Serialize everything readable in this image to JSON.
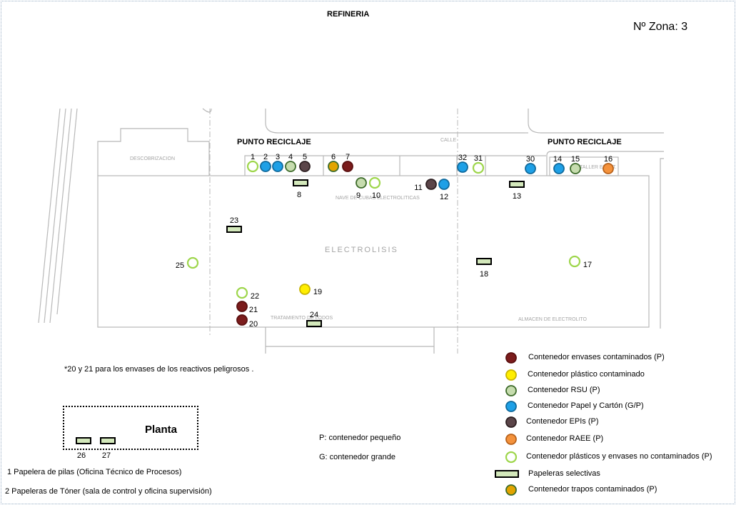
{
  "header": {
    "title": "REFINERIA",
    "zone": "Nº Zona: 3"
  },
  "map": {
    "punto_reciclaje": "PUNTO RECICLAJE",
    "plan_labels": {
      "descobrizacion": "DESCOBRIZACION",
      "calle": "CALLE",
      "nave": "NAVE DE CUBAS ELECTROLITICAS",
      "electrolisis": "ELECTROLISIS",
      "tratamiento": "TRATAMIENTO DE LODOS",
      "almacen": "ALMACEN DE ELECTROLITO",
      "taller": "TALLER ELECT."
    },
    "markers": [
      {
        "label": "1",
        "type": "plastic_clean"
      },
      {
        "label": "2",
        "type": "paper"
      },
      {
        "label": "3",
        "type": "paper"
      },
      {
        "label": "4",
        "type": "rsu"
      },
      {
        "label": "5",
        "type": "epi"
      },
      {
        "label": "6",
        "type": "rags"
      },
      {
        "label": "7",
        "type": "hazard"
      },
      {
        "label": "8",
        "type": "bin"
      },
      {
        "label": "9",
        "type": "rsu"
      },
      {
        "label": "10",
        "type": "plastic_clean"
      },
      {
        "label": "11",
        "type": "epi"
      },
      {
        "label": "12",
        "type": "paper"
      },
      {
        "label": "13",
        "type": "bin"
      },
      {
        "label": "14",
        "type": "paper"
      },
      {
        "label": "15",
        "type": "rsu"
      },
      {
        "label": "16",
        "type": "raee"
      },
      {
        "label": "17",
        "type": "plastic_clean"
      },
      {
        "label": "18",
        "type": "bin"
      },
      {
        "label": "19",
        "type": "plastic_contam"
      },
      {
        "label": "20",
        "type": "hazard"
      },
      {
        "label": "21",
        "type": "hazard"
      },
      {
        "label": "22",
        "type": "plastic_clean"
      },
      {
        "label": "23",
        "type": "bin"
      },
      {
        "label": "24",
        "type": "bin"
      },
      {
        "label": "25",
        "type": "plastic_clean"
      },
      {
        "label": "26",
        "type": "bin"
      },
      {
        "label": "27",
        "type": "bin"
      },
      {
        "label": "30",
        "type": "paper"
      },
      {
        "label": "31",
        "type": "plastic_clean"
      },
      {
        "label": "32",
        "type": "paper"
      }
    ]
  },
  "notes": {
    "reactivos": "*20 y 21 para los envases de los reactivos peligrosos .",
    "p": "P: contenedor pequeño",
    "g": "G: contenedor grande",
    "pilas": "1 Papelera de pilas (Oficina Técnico de Procesos)",
    "toner": "2 Papeleras de Tóner (sala de control y oficina supervisión)"
  },
  "planta": "Planta",
  "legend": [
    {
      "type": "hazard",
      "label": "Contenedor envases contaminados (P)",
      "fill": "#7b1c1c",
      "stroke": "#5a0f0f"
    },
    {
      "type": "plastic_contam",
      "label": "Contenedor plástico contaminado",
      "fill": "#ffee00",
      "stroke": "#c8b400"
    },
    {
      "type": "rsu",
      "label": "Contenedor RSU (P)",
      "fill": "#c6dcae",
      "stroke": "#3d6b2a"
    },
    {
      "type": "paper",
      "label": "Contenedor Papel y Cartón (G/P)",
      "fill": "#1ea0e6",
      "stroke": "#106a9c"
    },
    {
      "type": "epi",
      "label": "Contenedor EPIs (P)",
      "fill": "#5b4549",
      "stroke": "#2e2022"
    },
    {
      "type": "raee",
      "label": "Contenedor RAEE (P)",
      "fill": "#f4923c",
      "stroke": "#b8621b"
    },
    {
      "type": "plastic_clean",
      "label": "Contenedor plásticos y envases no contaminados (P)",
      "fill": "#ffffff",
      "stroke": "#9ed64c"
    },
    {
      "type": "bin",
      "label": "Papeleras selectivas",
      "fill": "#d3e8bb",
      "stroke": "#000000"
    },
    {
      "type": "rags",
      "label": "Contenedor trapos contaminados (P)",
      "fill": "#e2a400",
      "stroke": "#3d6b2a"
    }
  ]
}
